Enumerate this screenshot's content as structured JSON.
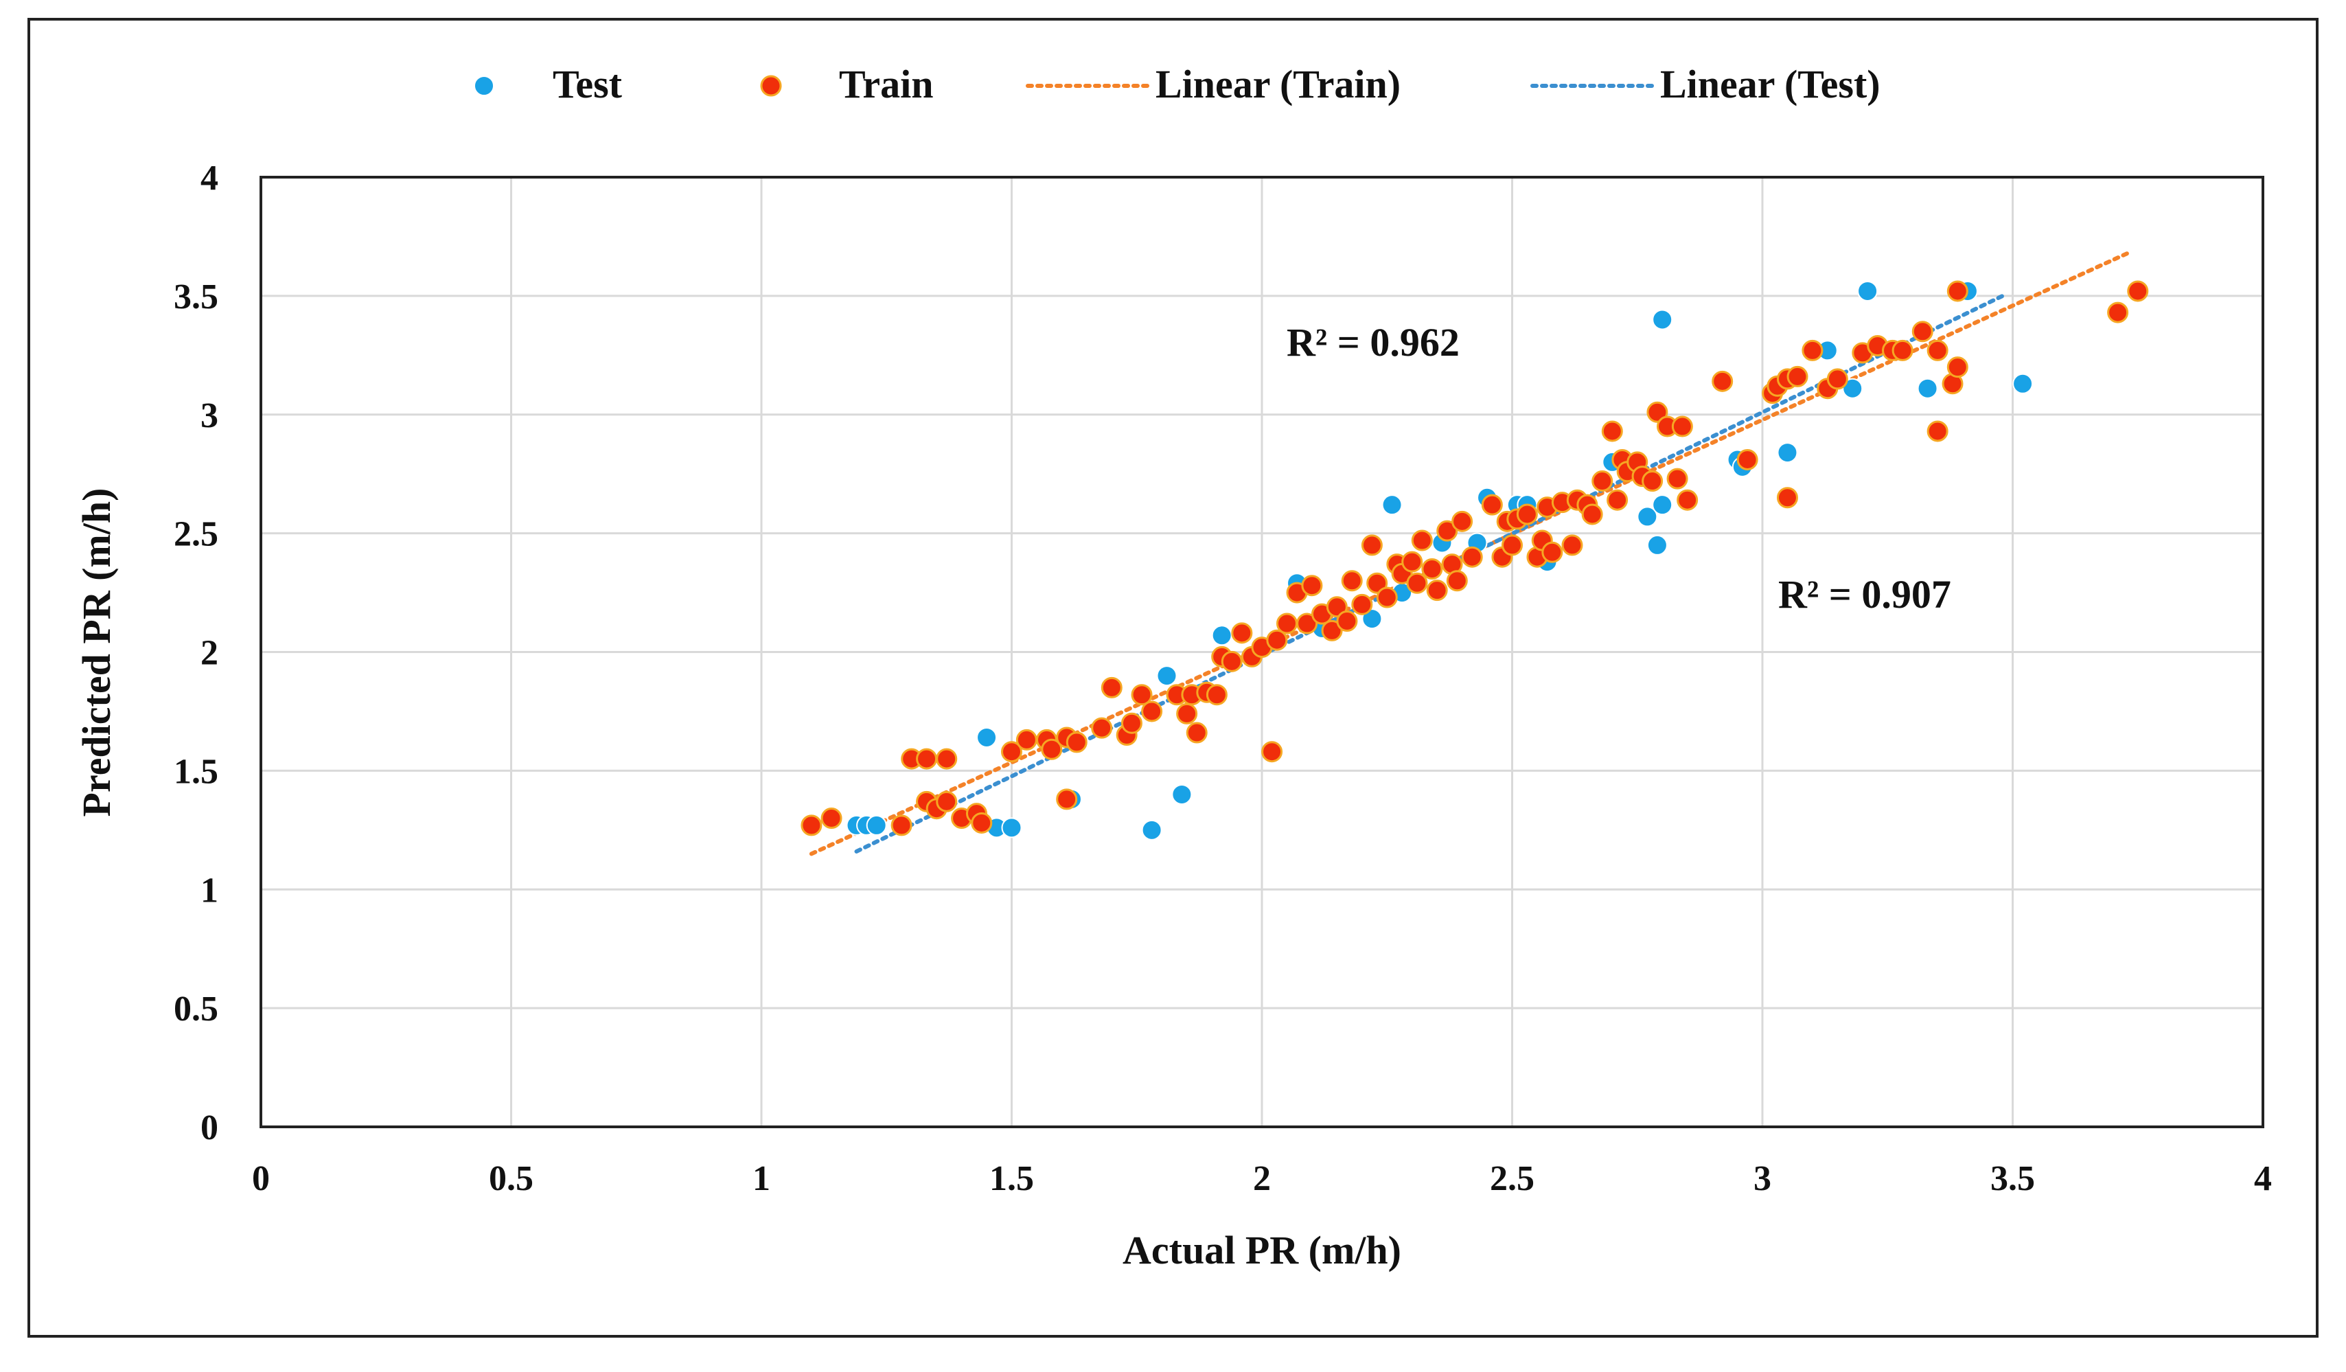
{
  "chart_data": {
    "type": "scatter",
    "title": "",
    "xlabel": "Actual PR (m/h)",
    "ylabel": "Predicted PR (m/h)",
    "xlim": [
      0,
      4
    ],
    "ylim": [
      0,
      4
    ],
    "x_ticks": [
      0,
      0.5,
      1,
      1.5,
      2,
      2.5,
      3,
      3.5,
      4
    ],
    "y_ticks": [
      0,
      0.5,
      1,
      1.5,
      2,
      2.5,
      3,
      3.5,
      4
    ],
    "x_tick_labels": [
      "0",
      "0.5",
      "1",
      "1.5",
      "2",
      "2.5",
      "3",
      "3.5",
      "4"
    ],
    "y_tick_labels": [
      "0",
      "0.5",
      "1",
      "1.5",
      "2",
      "2.5",
      "3",
      "3.5",
      "4"
    ],
    "grid": true,
    "legend_position": "top",
    "legend": [
      {
        "label": "Test",
        "kind": "marker",
        "color": "#19a2e6"
      },
      {
        "label": "Train",
        "kind": "marker",
        "color": "#f02e0a"
      },
      {
        "label": "Linear (Train)",
        "kind": "dotted-line",
        "color": "#f48228"
      },
      {
        "label": "Linear (Test)",
        "kind": "dotted-line",
        "color": "#3b8fd0"
      }
    ],
    "annotations": [
      {
        "text": "R² = 0.962",
        "x": 2.07,
        "y": 3.26
      },
      {
        "text": "R² = 0.907",
        "x": 3.05,
        "y": 2.21
      }
    ],
    "series": [
      {
        "name": "Test",
        "color": "#19a2e6",
        "points": [
          [
            1.19,
            1.27
          ],
          [
            1.21,
            1.27
          ],
          [
            1.23,
            1.27
          ],
          [
            1.45,
            1.64
          ],
          [
            1.47,
            1.26
          ],
          [
            1.5,
            1.26
          ],
          [
            1.62,
            1.38
          ],
          [
            1.78,
            1.25
          ],
          [
            1.81,
            1.9
          ],
          [
            1.84,
            1.4
          ],
          [
            1.88,
            1.83
          ],
          [
            1.92,
            2.07
          ],
          [
            2.07,
            2.29
          ],
          [
            2.12,
            2.1
          ],
          [
            2.22,
            2.14
          ],
          [
            2.26,
            2.62
          ],
          [
            2.28,
            2.25
          ],
          [
            2.36,
            2.46
          ],
          [
            2.43,
            2.46
          ],
          [
            2.45,
            2.65
          ],
          [
            2.51,
            2.62
          ],
          [
            2.53,
            2.62
          ],
          [
            2.57,
            2.38
          ],
          [
            2.7,
            2.8
          ],
          [
            2.77,
            2.57
          ],
          [
            2.79,
            2.45
          ],
          [
            2.8,
            3.4
          ],
          [
            2.8,
            2.62
          ],
          [
            2.95,
            2.81
          ],
          [
            2.96,
            2.78
          ],
          [
            3.05,
            2.84
          ],
          [
            3.13,
            3.27
          ],
          [
            3.18,
            3.11
          ],
          [
            3.21,
            3.52
          ],
          [
            3.33,
            3.11
          ],
          [
            3.39,
            3.2
          ],
          [
            3.41,
            3.52
          ],
          [
            3.52,
            3.13
          ]
        ]
      },
      {
        "name": "Train",
        "color": "#f02e0a",
        "points": [
          [
            1.1,
            1.27
          ],
          [
            1.14,
            1.3
          ],
          [
            1.28,
            1.27
          ],
          [
            1.3,
            1.55
          ],
          [
            1.33,
            1.55
          ],
          [
            1.33,
            1.37
          ],
          [
            1.35,
            1.34
          ],
          [
            1.37,
            1.55
          ],
          [
            1.37,
            1.37
          ],
          [
            1.4,
            1.3
          ],
          [
            1.43,
            1.32
          ],
          [
            1.44,
            1.28
          ],
          [
            1.5,
            1.58
          ],
          [
            1.53,
            1.63
          ],
          [
            1.57,
            1.63
          ],
          [
            1.58,
            1.59
          ],
          [
            1.61,
            1.64
          ],
          [
            1.61,
            1.38
          ],
          [
            1.63,
            1.62
          ],
          [
            1.68,
            1.68
          ],
          [
            1.7,
            1.85
          ],
          [
            1.73,
            1.65
          ],
          [
            1.74,
            1.7
          ],
          [
            1.76,
            1.82
          ],
          [
            1.78,
            1.75
          ],
          [
            1.83,
            1.82
          ],
          [
            1.85,
            1.74
          ],
          [
            1.86,
            1.82
          ],
          [
            1.87,
            1.66
          ],
          [
            1.89,
            1.83
          ],
          [
            1.91,
            1.82
          ],
          [
            1.92,
            1.98
          ],
          [
            1.94,
            1.96
          ],
          [
            1.96,
            2.08
          ],
          [
            1.98,
            1.98
          ],
          [
            2.0,
            2.02
          ],
          [
            2.02,
            1.58
          ],
          [
            2.03,
            2.05
          ],
          [
            2.05,
            2.12
          ],
          [
            2.07,
            2.25
          ],
          [
            2.09,
            2.12
          ],
          [
            2.1,
            2.28
          ],
          [
            2.12,
            2.16
          ],
          [
            2.14,
            2.09
          ],
          [
            2.15,
            2.19
          ],
          [
            2.17,
            2.13
          ],
          [
            2.18,
            2.3
          ],
          [
            2.2,
            2.2
          ],
          [
            2.22,
            2.45
          ],
          [
            2.23,
            2.29
          ],
          [
            2.25,
            2.23
          ],
          [
            2.27,
            2.37
          ],
          [
            2.28,
            2.33
          ],
          [
            2.3,
            2.38
          ],
          [
            2.31,
            2.29
          ],
          [
            2.32,
            2.47
          ],
          [
            2.34,
            2.35
          ],
          [
            2.35,
            2.26
          ],
          [
            2.37,
            2.51
          ],
          [
            2.38,
            2.37
          ],
          [
            2.39,
            2.3
          ],
          [
            2.4,
            2.55
          ],
          [
            2.42,
            2.4
          ],
          [
            2.46,
            2.62
          ],
          [
            2.48,
            2.4
          ],
          [
            2.49,
            2.55
          ],
          [
            2.5,
            2.45
          ],
          [
            2.51,
            2.56
          ],
          [
            2.53,
            2.58
          ],
          [
            2.55,
            2.4
          ],
          [
            2.56,
            2.47
          ],
          [
            2.57,
            2.61
          ],
          [
            2.58,
            2.42
          ],
          [
            2.6,
            2.63
          ],
          [
            2.62,
            2.45
          ],
          [
            2.63,
            2.64
          ],
          [
            2.65,
            2.62
          ],
          [
            2.66,
            2.58
          ],
          [
            2.68,
            2.72
          ],
          [
            2.7,
            2.93
          ],
          [
            2.71,
            2.64
          ],
          [
            2.72,
            2.81
          ],
          [
            2.73,
            2.76
          ],
          [
            2.75,
            2.8
          ],
          [
            2.76,
            2.74
          ],
          [
            2.78,
            2.72
          ],
          [
            2.79,
            3.01
          ],
          [
            2.81,
            2.95
          ],
          [
            2.83,
            2.73
          ],
          [
            2.84,
            2.95
          ],
          [
            2.85,
            2.64
          ],
          [
            2.92,
            3.14
          ],
          [
            2.97,
            2.81
          ],
          [
            3.02,
            3.09
          ],
          [
            3.03,
            3.12
          ],
          [
            3.05,
            2.65
          ],
          [
            3.05,
            3.15
          ],
          [
            3.07,
            3.16
          ],
          [
            3.1,
            3.27
          ],
          [
            3.13,
            3.11
          ],
          [
            3.15,
            3.15
          ],
          [
            3.2,
            3.26
          ],
          [
            3.23,
            3.29
          ],
          [
            3.26,
            3.27
          ],
          [
            3.28,
            3.27
          ],
          [
            3.32,
            3.35
          ],
          [
            3.35,
            3.27
          ],
          [
            3.35,
            2.93
          ],
          [
            3.38,
            3.13
          ],
          [
            3.39,
            3.2
          ],
          [
            3.39,
            3.52
          ],
          [
            3.71,
            3.43
          ],
          [
            3.75,
            3.52
          ]
        ]
      }
    ],
    "trendlines": [
      {
        "name": "Linear (Train)",
        "from": [
          1.1,
          1.15
        ],
        "to": [
          3.73,
          3.68
        ],
        "color": "#f48228"
      },
      {
        "name": "Linear (Test)",
        "from": [
          1.19,
          1.16
        ],
        "to": [
          3.48,
          3.5
        ],
        "color": "#3b8fd0"
      }
    ]
  }
}
